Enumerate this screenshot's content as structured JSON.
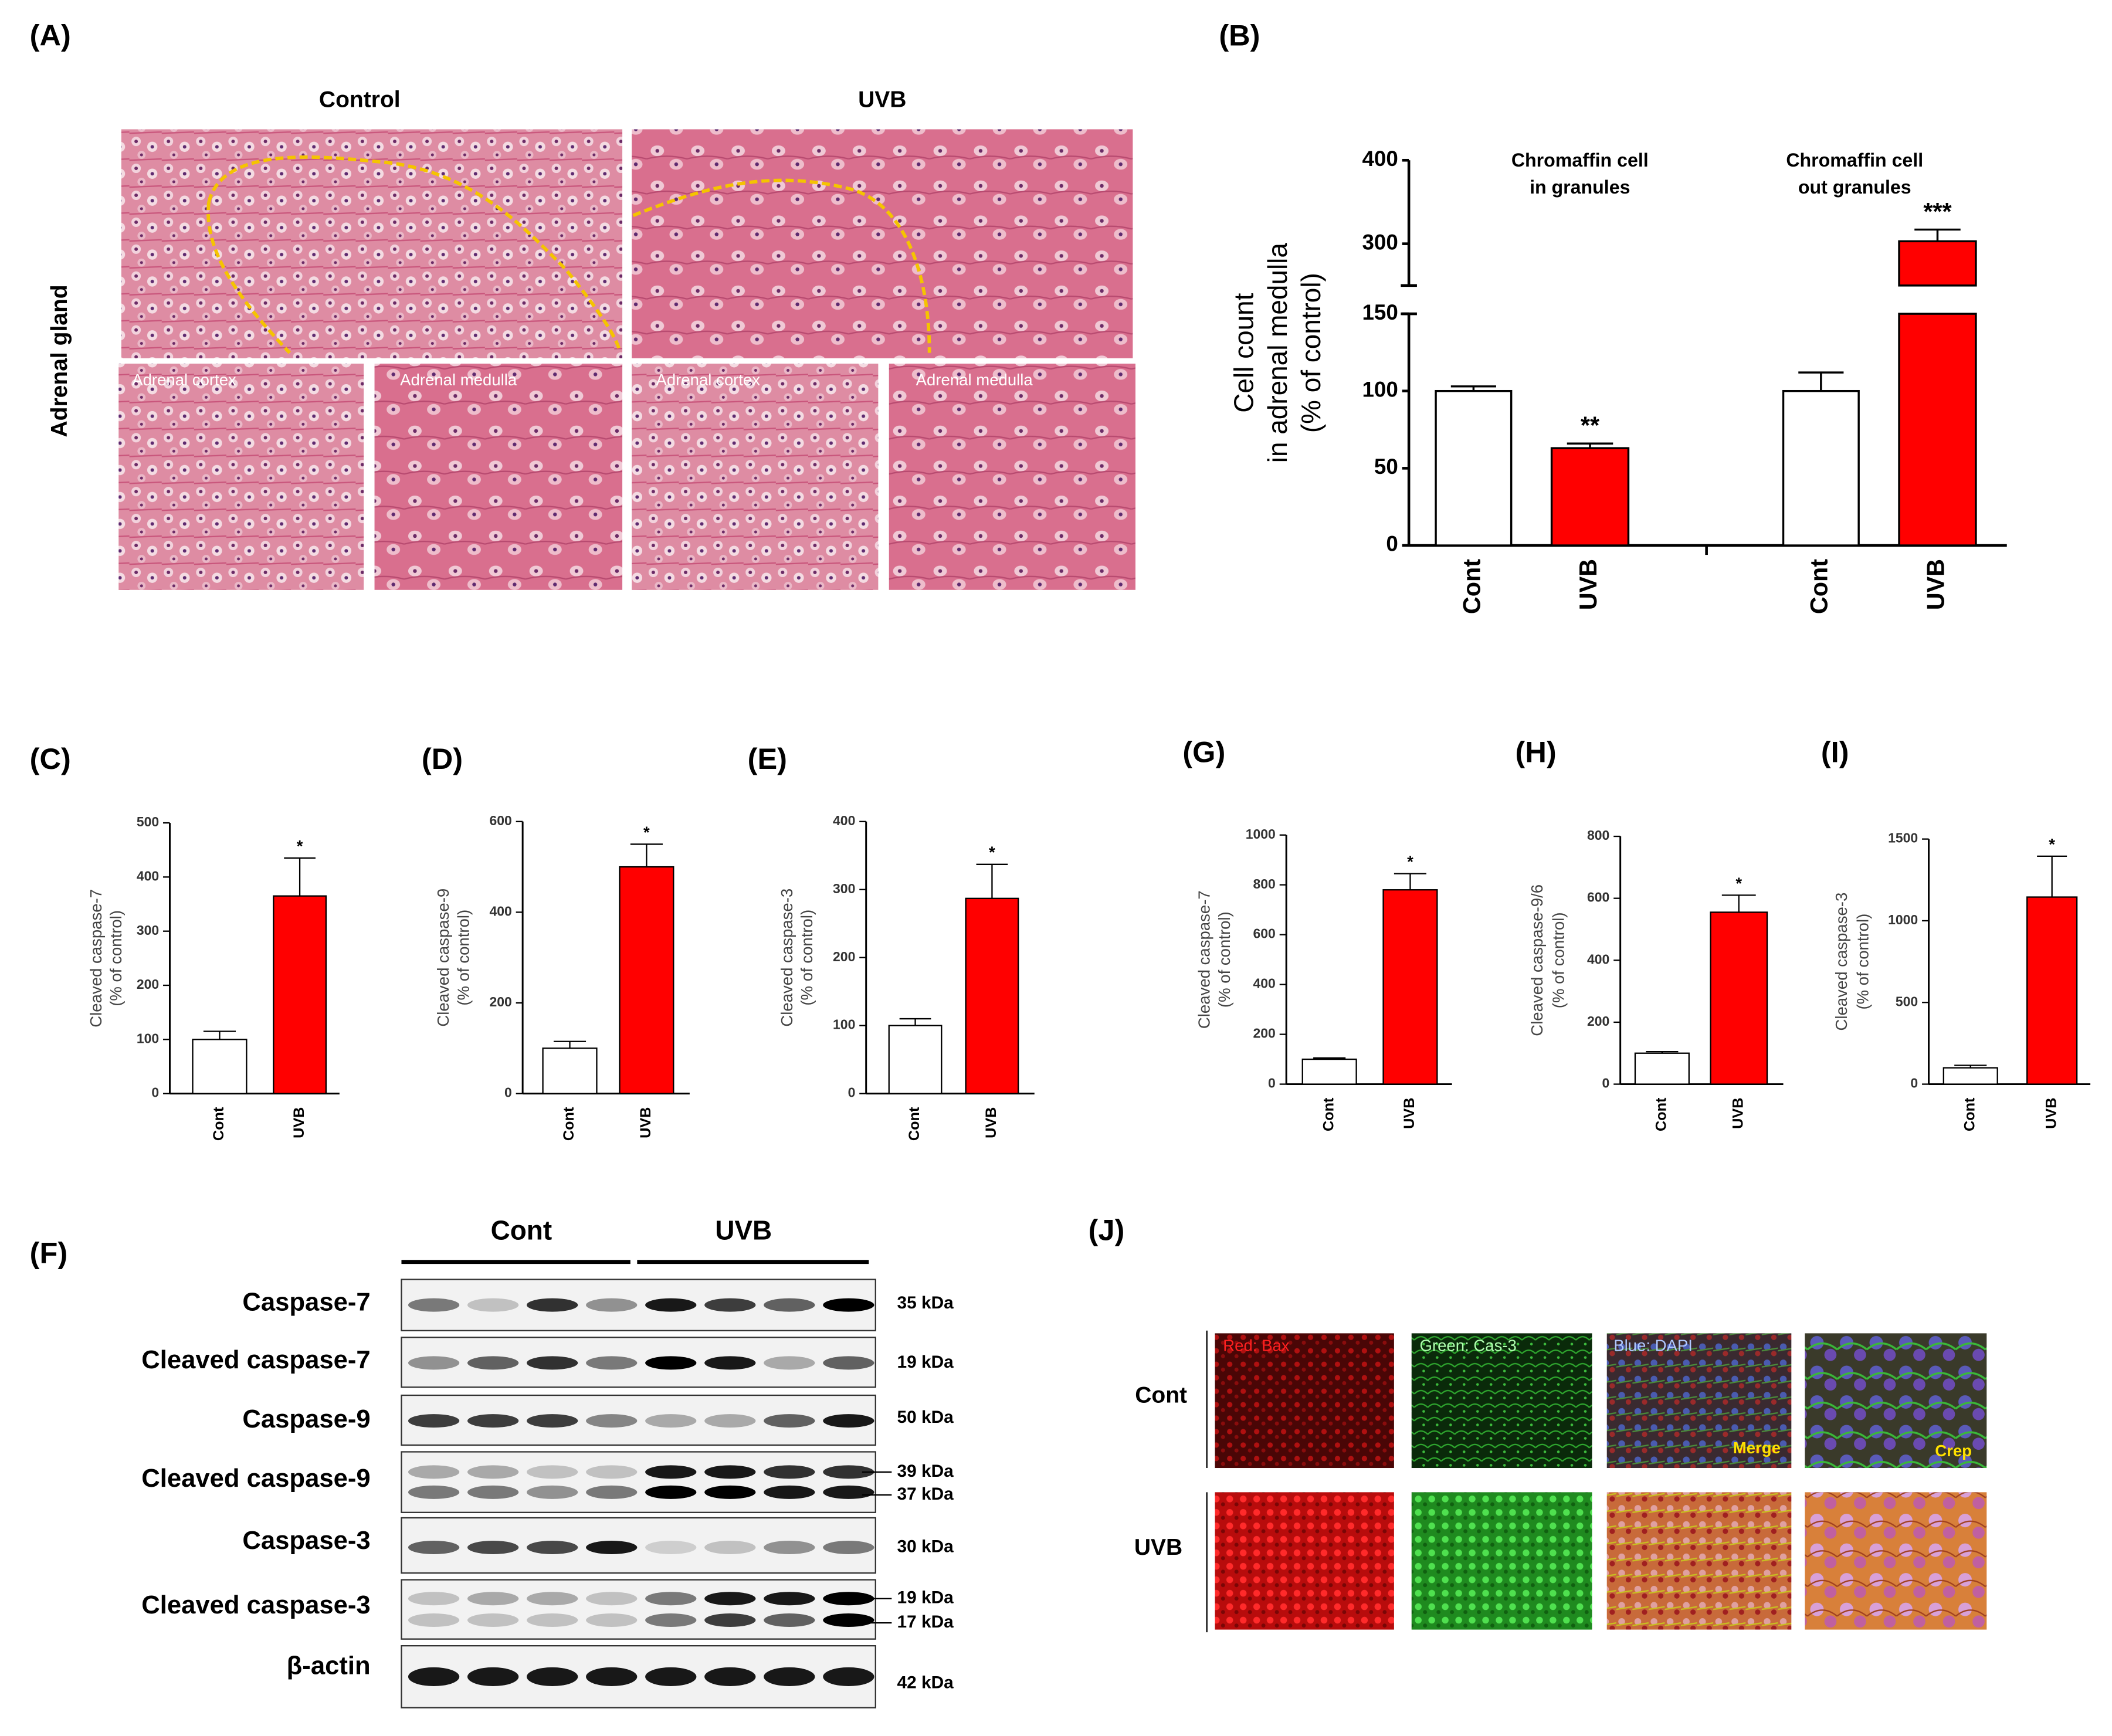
{
  "histology": {
    "panel": "(A)",
    "columns": [
      "Control",
      "UVB"
    ],
    "row_label": "Adrenal gland",
    "sub_labels": [
      "Adrenal cortex",
      "Adrenal medulla",
      "Adrenal cortex",
      "Adrenal medulla"
    ]
  },
  "chart_data": [
    {
      "type": "bar",
      "panel": "(B)",
      "ylabel": [
        "Cell count",
        "in adrenal medulla",
        "(% of control)"
      ],
      "groups": [
        [
          "Chromaffin cell",
          "in granules"
        ],
        [
          "Chromaffin cell",
          "out granules"
        ]
      ],
      "categories": [
        "Cont",
        "UVB",
        "Cont",
        "UVB"
      ],
      "values": [
        100,
        63,
        100,
        303
      ],
      "errors": [
        3,
        3,
        12,
        14
      ],
      "colors": [
        "#ffffff",
        "#ff0000",
        "#ffffff",
        "#ff0000"
      ],
      "significance": [
        null,
        "**",
        null,
        "***"
      ],
      "ylim": [
        0,
        400
      ],
      "ybreak": [
        150,
        250
      ],
      "yticks": [
        0,
        50,
        100,
        150,
        300,
        400
      ]
    },
    {
      "type": "bar",
      "panel": "(C)",
      "ylabel": [
        "Cleaved caspase-7",
        "(% of control)"
      ],
      "categories": [
        "Cont",
        "UVB"
      ],
      "values": [
        100,
        365
      ],
      "errors": [
        15,
        70
      ],
      "colors": [
        "#ffffff",
        "#ff0000"
      ],
      "significance": [
        null,
        "*"
      ],
      "ylim": [
        0,
        500
      ],
      "yticks": [
        0,
        100,
        200,
        300,
        400,
        500
      ]
    },
    {
      "type": "bar",
      "panel": "(D)",
      "ylabel": [
        "Cleaved caspase-9",
        "(% of control)"
      ],
      "categories": [
        "Cont",
        "UVB"
      ],
      "values": [
        100,
        500
      ],
      "errors": [
        15,
        50
      ],
      "colors": [
        "#ffffff",
        "#ff0000"
      ],
      "significance": [
        null,
        "*"
      ],
      "ylim": [
        0,
        600
      ],
      "yticks": [
        0,
        200,
        400,
        600
      ]
    },
    {
      "type": "bar",
      "panel": "(E)",
      "ylabel": [
        "Cleaved caspase-3",
        "(% of control)"
      ],
      "categories": [
        "Cont",
        "UVB"
      ],
      "values": [
        100,
        287
      ],
      "errors": [
        10,
        50
      ],
      "colors": [
        "#ffffff",
        "#ff0000"
      ],
      "significance": [
        null,
        "*"
      ],
      "ylim": [
        0,
        400
      ],
      "yticks": [
        0,
        100,
        200,
        300,
        400
      ]
    },
    {
      "type": "bar",
      "panel": "(G)",
      "ylabel": [
        "Cleaved caspase-7",
        "(% of control)"
      ],
      "categories": [
        "Cont",
        "UVB"
      ],
      "values": [
        100,
        780
      ],
      "errors": [
        5,
        65
      ],
      "colors": [
        "#ffffff",
        "#ff0000"
      ],
      "significance": [
        null,
        "*"
      ],
      "ylim": [
        0,
        1000
      ],
      "yticks": [
        0,
        200,
        400,
        600,
        800,
        1000
      ]
    },
    {
      "type": "bar",
      "panel": "(H)",
      "ylabel": [
        "Cleaved caspase-9/6",
        "(% of control)"
      ],
      "categories": [
        "Cont",
        "UVB"
      ],
      "values": [
        100,
        555
      ],
      "errors": [
        5,
        55
      ],
      "colors": [
        "#ffffff",
        "#ff0000"
      ],
      "significance": [
        null,
        "*"
      ],
      "ylim": [
        0,
        800
      ],
      "yticks": [
        0,
        200,
        400,
        600,
        800
      ]
    },
    {
      "type": "bar",
      "panel": "(I)",
      "ylabel": [
        "Cleaved caspase-3",
        "(% of control)"
      ],
      "categories": [
        "Cont",
        "UVB"
      ],
      "values": [
        100,
        1145
      ],
      "errors": [
        15,
        250
      ],
      "colors": [
        "#ffffff",
        "#ff0000"
      ],
      "significance": [
        null,
        "*"
      ],
      "ylim": [
        0,
        1500
      ],
      "yticks": [
        0,
        500,
        1000,
        1500
      ]
    }
  ],
  "blot": {
    "panel": "(F)",
    "groups": [
      "Cont",
      "UVB"
    ],
    "rows": [
      {
        "name": "Caspase-7",
        "markers": [
          "35 kDa"
        ]
      },
      {
        "name": "Cleaved  caspase-7",
        "markers": [
          "19 kDa"
        ]
      },
      {
        "name": "Caspase-9",
        "markers": [
          "50 kDa"
        ]
      },
      {
        "name": "Cleaved  caspase-9",
        "markers": [
          "39 kDa",
          "37 kDa"
        ]
      },
      {
        "name": "Caspase-3",
        "markers": [
          "30 kDa"
        ]
      },
      {
        "name": "Cleaved  caspase-3",
        "markers": [
          "19 kDa",
          "17 kDa"
        ]
      },
      {
        "name": "β-actin",
        "markers": [
          "42 kDa"
        ]
      }
    ]
  },
  "fluorescence": {
    "panel": "(J)",
    "rows": [
      "Cont",
      "UVB"
    ],
    "channels": [
      "Red: Bax",
      "Green: Cas-3",
      "Blue: DAPI"
    ],
    "merge": "Merge",
    "crop": "Crep"
  }
}
